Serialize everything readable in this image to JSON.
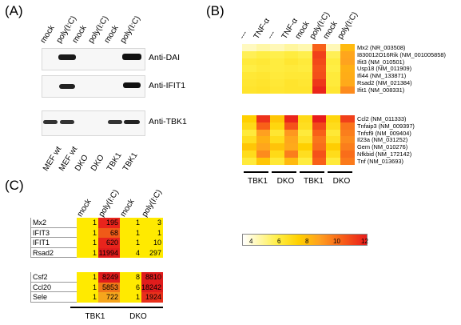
{
  "panelA": {
    "label": "(A)",
    "lanes_top": [
      "mock",
      "poly(I:C)",
      "mock",
      "poly(I:C)",
      "mock",
      "poly(I:C)"
    ],
    "lanes_bottom": [
      "MEF wt",
      "MEF wt",
      "DKO",
      "DKO",
      "TBK1",
      "TBK1"
    ],
    "blots": [
      "Anti-DAI",
      "Anti-IFIT1",
      "Anti-TBK1"
    ]
  },
  "panelB": {
    "label": "(B)",
    "columns": [
      "---",
      "TNF-α",
      "---",
      "TNF-α",
      "mock",
      "poly(I:C)",
      "mock",
      "poly(I:C)"
    ],
    "genes_top": [
      "Mx2  (NR_003508)",
      "I830012O16Rik  (NM_001005858)",
      "Ifit3  (NM_010501)",
      "Usp18  (NM_011909)",
      "Ifi44  (NM_133871)",
      "Rsad2  (NM_021384)",
      "Ifit1  (NM_008331)"
    ],
    "genes_bottom": [
      "Ccl2  (NM_011333)",
      "Tnfaip3  (NM_009397)",
      "Tnfsf9  (NM_009404)",
      "Il23a  (NM_031252)",
      "Gem  (NM_010276)",
      "Nfkbid  (NM_172142)",
      "Tnf  (NM_013693)"
    ],
    "groups": [
      "TBK1",
      "DKO",
      "TBK1",
      "DKO"
    ],
    "heat_top": [
      [
        4.5,
        4.8,
        4.6,
        4.9,
        4.7,
        10.5,
        4.6,
        8.2
      ],
      [
        5.8,
        6.0,
        5.9,
        6.1,
        5.9,
        11.2,
        5.8,
        8.8
      ],
      [
        6.2,
        6.3,
        6.1,
        6.4,
        6.2,
        11.0,
        6.1,
        8.9
      ],
      [
        6.0,
        6.2,
        6.1,
        6.2,
        6.1,
        10.8,
        6.0,
        8.5
      ],
      [
        6.3,
        6.4,
        6.2,
        6.3,
        6.3,
        10.9,
        6.2,
        8.6
      ],
      [
        6.4,
        6.5,
        6.3,
        6.5,
        6.4,
        11.4,
        6.2,
        8.7
      ],
      [
        6.5,
        6.6,
        6.4,
        6.5,
        6.5,
        11.8,
        6.4,
        9.5
      ]
    ],
    "heat_bottom": [
      [
        7.5,
        11.5,
        7.8,
        11.8,
        7.0,
        12.0,
        7.2,
        11.2
      ],
      [
        7.0,
        10.5,
        7.2,
        10.8,
        6.8,
        11.0,
        6.9,
        10.0
      ],
      [
        6.2,
        9.0,
        6.4,
        9.2,
        6.2,
        10.5,
        6.3,
        9.8
      ],
      [
        6.8,
        8.5,
        6.9,
        8.8,
        6.6,
        10.0,
        6.7,
        9.5
      ],
      [
        7.8,
        8.8,
        7.9,
        8.7,
        7.5,
        10.2,
        7.6,
        9.8
      ],
      [
        6.9,
        9.5,
        7.0,
        9.8,
        6.8,
        10.8,
        6.9,
        10.2
      ],
      [
        6.2,
        7.8,
        6.3,
        8.2,
        6.1,
        10.5,
        6.2,
        9.9
      ]
    ],
    "scale_ticks": [
      "4",
      "6",
      "8",
      "10",
      "12"
    ]
  },
  "panelC": {
    "label": "(C)",
    "columns": [
      "mock",
      "poly(I:C)",
      "mock",
      "poly(I:C)"
    ],
    "groups": [
      "TBK1",
      "DKO"
    ],
    "rows_top": [
      {
        "name": "Mx2",
        "values": [
          "1",
          "195",
          "1",
          "3"
        ]
      },
      {
        "name": "IFIT3",
        "values": [
          "1",
          "68",
          "1",
          "1"
        ]
      },
      {
        "name": "IFIT1",
        "values": [
          "1",
          "620",
          "1",
          "10"
        ]
      },
      {
        "name": "Rsad2",
        "values": [
          "1",
          "11994",
          "4",
          "297"
        ]
      }
    ],
    "rows_bottom": [
      {
        "name": "Csf2",
        "values": [
          "1",
          "8249",
          "8",
          "8810"
        ]
      },
      {
        "name": "Ccl20",
        "values": [
          "1",
          "5853",
          "6",
          "18242"
        ]
      },
      {
        "name": "Sele",
        "values": [
          "1",
          "722",
          "1",
          "1924"
        ]
      }
    ],
    "cell_colors_top": [
      [
        "#ffea00",
        "#e8241c",
        "#ffea00",
        "#ffea00"
      ],
      [
        "#ffea00",
        "#f05a18",
        "#ffea00",
        "#ffea00"
      ],
      [
        "#ffea00",
        "#e8241c",
        "#ffea00",
        "#ffea00"
      ],
      [
        "#ffea00",
        "#e01c1c",
        "#ffea00",
        "#ffea00"
      ]
    ],
    "cell_colors_bottom": [
      [
        "#ffea00",
        "#e01c1c",
        "#ffea00",
        "#e01c1c"
      ],
      [
        "#ffea00",
        "#f07818",
        "#ffea00",
        "#e01c1c"
      ],
      [
        "#ffea00",
        "#f5a51c",
        "#ffea00",
        "#e8301c"
      ]
    ]
  }
}
